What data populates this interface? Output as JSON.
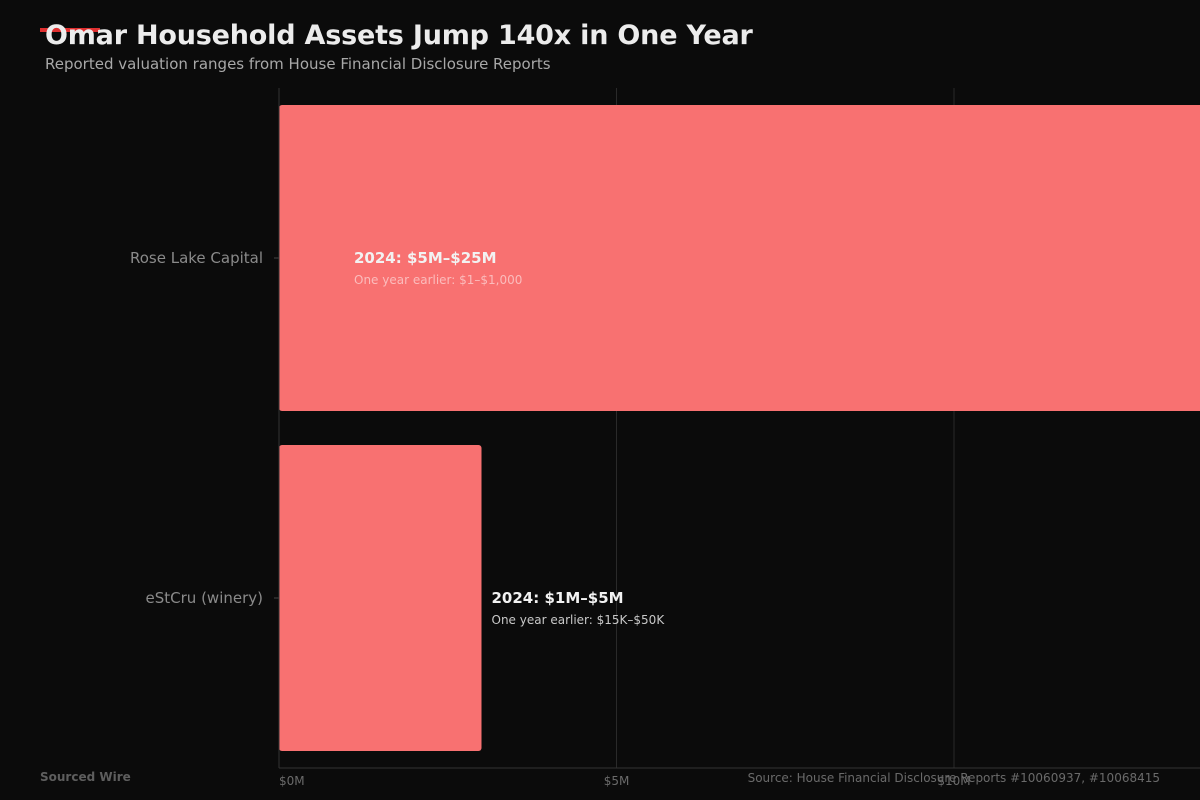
{
  "header": {
    "title": "Omar Household Assets Jump 140x in One Year",
    "subtitle": "Reported valuation ranges from House Financial Disclosure Reports",
    "accent_color": "#e03030"
  },
  "footer": {
    "brand": "Sourced Wire",
    "source": "Source: House Financial Disclosure Reports #10060937, #10068415"
  },
  "colors": {
    "background": "#0b0b0b",
    "bar": "#f87171",
    "grid": "#2a2a2a",
    "category_text": "#8a8a8a",
    "tick_text": "#6a6a6a",
    "label_main": "#f2f2f2",
    "label_sub_on_bar": "#fbbcbc",
    "label_sub_outside": "#c8c8c8"
  },
  "chart_data": {
    "type": "bar",
    "orientation": "horizontal",
    "categories": [
      "Rose Lake Capital",
      "eStCru (winery)"
    ],
    "values": [
      25,
      3
    ],
    "value_unit": "$M",
    "bar_labels": [
      {
        "main": "2024: $5M–$25M",
        "sub": "One year earlier: $1–$1,000",
        "position": "inside"
      },
      {
        "main": "2024: $1M–$5M",
        "sub": "One year earlier: $15K–$50K",
        "position": "outside"
      }
    ],
    "x_ticks": [
      {
        "value": 0,
        "label": "$0M"
      },
      {
        "value": 5,
        "label": "$5M"
      },
      {
        "value": 10,
        "label": "$10M"
      }
    ],
    "xlim": [
      0,
      25
    ],
    "grid": true
  }
}
